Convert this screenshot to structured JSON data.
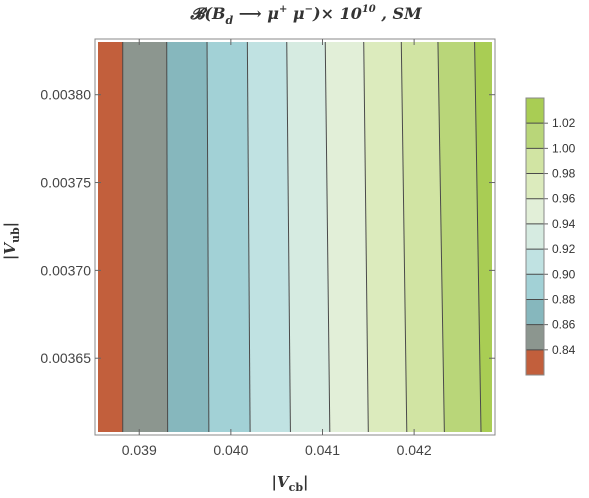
{
  "chart_data": {
    "type": "heatmap",
    "subtype": "contour",
    "title": {
      "main": "𝓑(",
      "b": "B",
      "b_sub": "d",
      "arrow": " ⟶ ",
      "mu1": "μ",
      "mu1_sup": "+",
      "mu2": " μ",
      "mu2_sup": "−",
      "times": ")× 10",
      "exp": "10",
      "suffix": " , SM"
    },
    "xlabel": {
      "open": "|",
      "v": "V",
      "sub": "cb",
      "close": "|"
    },
    "ylabel": {
      "open": "|",
      "v": "V",
      "sub": "ub",
      "close": "|"
    },
    "xlim": [
      0.03855,
      0.04285
    ],
    "ylim": [
      0.003608,
      0.00383
    ],
    "x_ticks": [
      {
        "value": 0.039,
        "label": "0.039"
      },
      {
        "value": 0.04,
        "label": "0.040"
      },
      {
        "value": 0.041,
        "label": "0.041"
      },
      {
        "value": 0.042,
        "label": "0.042"
      }
    ],
    "y_ticks": [
      {
        "value": 0.00365,
        "label": "0.00365"
      },
      {
        "value": 0.0037,
        "label": "0.00370"
      },
      {
        "value": 0.00375,
        "label": "0.00375"
      },
      {
        "value": 0.0038,
        "label": "0.00380"
      }
    ],
    "contour_bands": [
      {
        "x_bottom_start": 0.03855,
        "x_bottom_end": 0.03882,
        "x_top_start": 0.03855,
        "x_top_end": 0.03882,
        "range": [
          0.82,
          0.84
        ],
        "color": "#c25f3c"
      },
      {
        "x_bottom_start": 0.03882,
        "x_bottom_end": 0.03931,
        "x_top_start": 0.03882,
        "x_top_end": 0.0393,
        "range": [
          0.84,
          0.86
        ],
        "color": "#8c968f"
      },
      {
        "x_bottom_start": 0.03931,
        "x_bottom_end": 0.03976,
        "x_top_start": 0.0393,
        "x_top_end": 0.03974,
        "range": [
          0.86,
          0.88
        ],
        "color": "#86b7bd"
      },
      {
        "x_bottom_start": 0.03976,
        "x_bottom_end": 0.04021,
        "x_top_start": 0.03974,
        "x_top_end": 0.04018,
        "range": [
          0.88,
          0.9
        ],
        "color": "#a2d1d6"
      },
      {
        "x_bottom_start": 0.04021,
        "x_bottom_end": 0.04065,
        "x_top_start": 0.04018,
        "x_top_end": 0.04061,
        "range": [
          0.9,
          0.92
        ],
        "color": "#c0e2e2"
      },
      {
        "x_bottom_start": 0.04065,
        "x_bottom_end": 0.04108,
        "x_top_start": 0.04061,
        "x_top_end": 0.04103,
        "range": [
          0.92,
          0.94
        ],
        "color": "#d6ebe1"
      },
      {
        "x_bottom_start": 0.04108,
        "x_bottom_end": 0.0415,
        "x_top_start": 0.04103,
        "x_top_end": 0.04145,
        "range": [
          0.94,
          0.96
        ],
        "color": "#e2efd8"
      },
      {
        "x_bottom_start": 0.0415,
        "x_bottom_end": 0.04192,
        "x_top_start": 0.04145,
        "x_top_end": 0.04186,
        "range": [
          0.96,
          0.98
        ],
        "color": "#dcebbd"
      },
      {
        "x_bottom_start": 0.04192,
        "x_bottom_end": 0.04233,
        "x_top_start": 0.04186,
        "x_top_end": 0.04226,
        "range": [
          0.98,
          1.0
        ],
        "color": "#d1e4a3"
      },
      {
        "x_bottom_start": 0.04233,
        "x_bottom_end": 0.04273,
        "x_top_start": 0.04226,
        "x_top_end": 0.04266,
        "range": [
          1.0,
          1.02
        ],
        "color": "#b9d679"
      },
      {
        "x_bottom_start": 0.04273,
        "x_bottom_end": 0.04285,
        "x_top_start": 0.04266,
        "x_top_end": 0.04285,
        "range": [
          1.02,
          1.04
        ],
        "color": "#a9cd54"
      }
    ],
    "legend": {
      "placement": "right",
      "min": 0.82,
      "max": 1.04,
      "labels": [
        {
          "value": 0.84,
          "label": "0.84"
        },
        {
          "value": 0.86,
          "label": "0.86"
        },
        {
          "value": 0.88,
          "label": "0.88"
        },
        {
          "value": 0.9,
          "label": "0.90"
        },
        {
          "value": 0.92,
          "label": "0.92"
        },
        {
          "value": 0.94,
          "label": "0.94"
        },
        {
          "value": 0.96,
          "label": "0.96"
        },
        {
          "value": 0.98,
          "label": "0.98"
        },
        {
          "value": 1.0,
          "label": "1.00"
        },
        {
          "value": 1.02,
          "label": "1.02"
        }
      ]
    },
    "grid": false,
    "colors": {
      "contour_line": "#4a4a4a",
      "frame": "#888888",
      "frame_bg": "#ffffff"
    }
  }
}
